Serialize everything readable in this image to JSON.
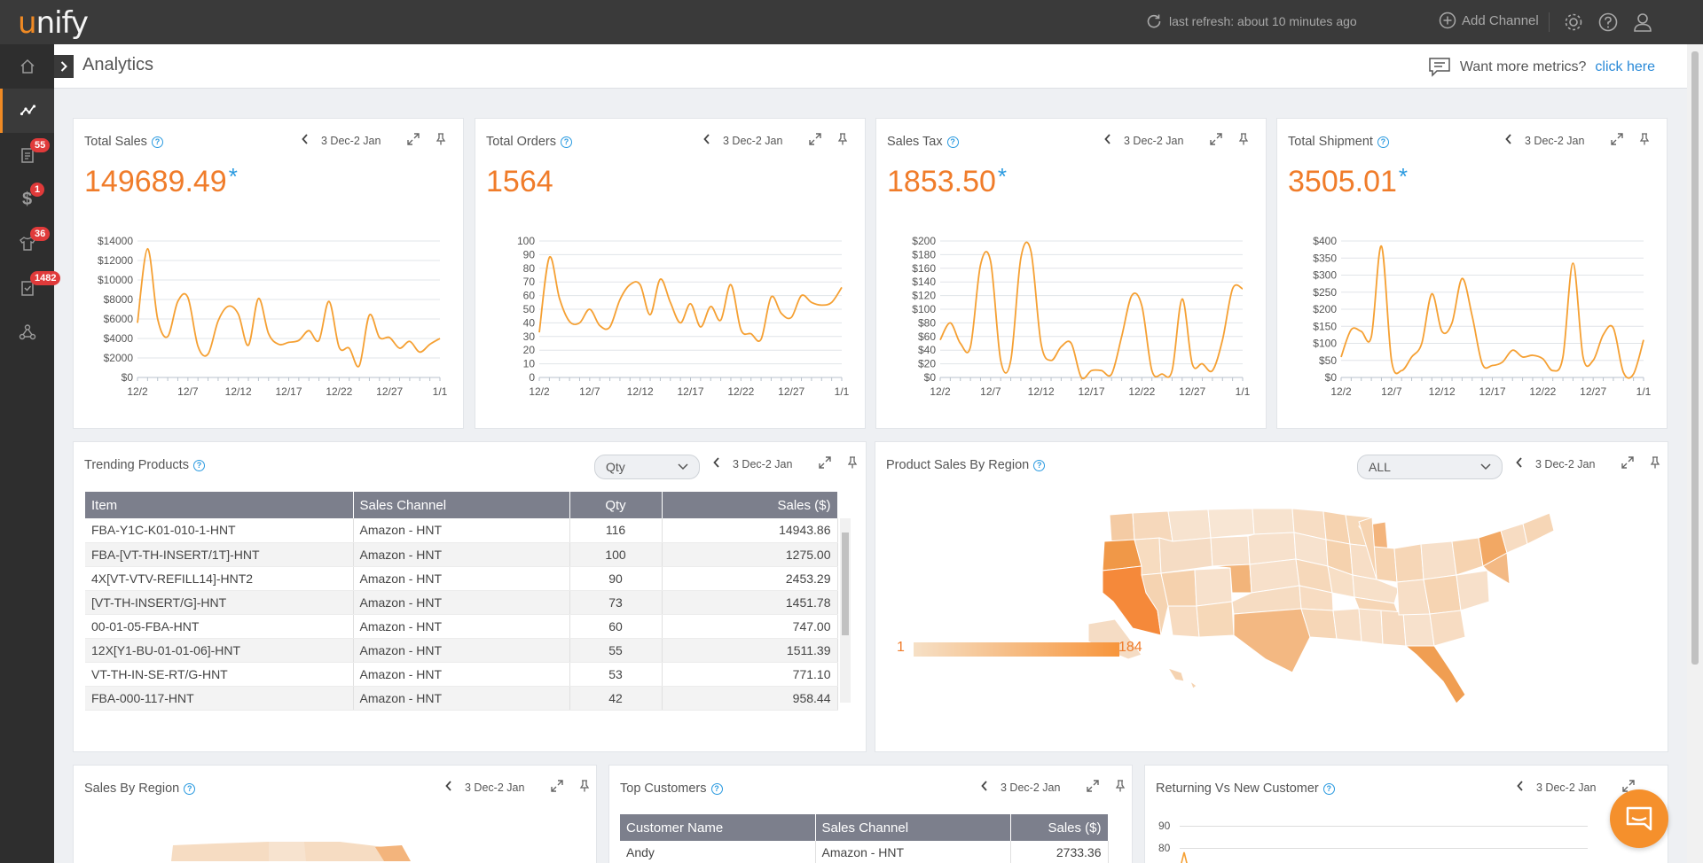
{
  "app": {
    "logo_text_1": "u",
    "logo_text_2": "nify"
  },
  "topbar": {
    "refresh_text": "last refresh: about 10 minutes ago",
    "add_channel": "Add Channel",
    "icons": [
      "refresh-icon",
      "plus-circle-icon",
      "gear-icon",
      "help-icon",
      "user-icon"
    ]
  },
  "sidebar": {
    "items": [
      {
        "name": "home",
        "icon": "home-icon",
        "badge": ""
      },
      {
        "name": "analytics",
        "icon": "analytics-icon",
        "badge": "",
        "active": true
      },
      {
        "name": "orders",
        "icon": "clipboard-icon",
        "badge": "55"
      },
      {
        "name": "sales",
        "icon": "dollar-icon",
        "badge": "1"
      },
      {
        "name": "products",
        "icon": "shirt-icon",
        "badge": "36"
      },
      {
        "name": "tasks",
        "icon": "checklist-icon",
        "badge": "1482"
      },
      {
        "name": "integrations",
        "icon": "network-icon",
        "badge": ""
      }
    ]
  },
  "page": {
    "title": "Analytics",
    "metrics_prompt": "Want more metrics?",
    "metrics_link": "click here"
  },
  "date_range": "3 Dec-2 Jan",
  "kpis": [
    {
      "title": "Total Sales",
      "value": "149689.49",
      "asterisk": "*"
    },
    {
      "title": "Total Orders",
      "value": "1564",
      "asterisk": ""
    },
    {
      "title": "Sales Tax",
      "value": "1853.50",
      "asterisk": "*"
    },
    {
      "title": "Total Shipment",
      "value": "3505.01",
      "asterisk": "*"
    }
  ],
  "chart_data": [
    {
      "type": "line",
      "title": "Total Sales",
      "x_ticks": [
        "12/2",
        "12/7",
        "12/12",
        "12/17",
        "12/22",
        "12/27",
        "1/1"
      ],
      "y_ticks": [
        "$0",
        "$2000",
        "$4000",
        "$6000",
        "$8000",
        "$10000",
        "$12000",
        "$14000"
      ],
      "ylim": [
        0,
        14000
      ],
      "color": "#f5a033",
      "values": [
        5600,
        13200,
        6000,
        4200,
        7800,
        8200,
        3200,
        2400,
        5800,
        7300,
        6500,
        3300,
        8100,
        4500,
        3400,
        3600,
        3800,
        4800,
        3800,
        7800,
        3100,
        3000,
        1200,
        6400,
        4100,
        4100,
        3000,
        3700,
        2600,
        3400,
        4000
      ]
    },
    {
      "type": "line",
      "title": "Total Orders",
      "x_ticks": [
        "12/2",
        "12/7",
        "12/12",
        "12/17",
        "12/22",
        "12/27",
        "1/1"
      ],
      "y_ticks": [
        "0",
        "10",
        "20",
        "30",
        "40",
        "50",
        "60",
        "70",
        "80",
        "90",
        "100"
      ],
      "ylim": [
        0,
        100
      ],
      "color": "#f5a033",
      "values": [
        33,
        88,
        58,
        41,
        40,
        50,
        38,
        37,
        57,
        68,
        68,
        46,
        72,
        55,
        40,
        54,
        37,
        52,
        42,
        68,
        35,
        32,
        28,
        59,
        47,
        44,
        60,
        55,
        53,
        55,
        66
      ]
    },
    {
      "type": "line",
      "title": "Sales Tax",
      "x_ticks": [
        "12/2",
        "12/7",
        "12/12",
        "12/17",
        "12/22",
        "12/27",
        "1/1"
      ],
      "y_ticks": [
        "$0",
        "$20",
        "$40",
        "$60",
        "$80",
        "$100",
        "$120",
        "$140",
        "$160",
        "$180",
        "$200"
      ],
      "ylim": [
        0,
        200
      ],
      "color": "#f5a033",
      "values": [
        55,
        80,
        50,
        45,
        165,
        170,
        25,
        25,
        175,
        185,
        50,
        25,
        45,
        50,
        0,
        10,
        10,
        5,
        60,
        120,
        105,
        10,
        5,
        10,
        115,
        20,
        20,
        10,
        55,
        130,
        130
      ]
    },
    {
      "type": "line",
      "title": "Total Shipment",
      "x_ticks": [
        "12/2",
        "12/7",
        "12/12",
        "12/17",
        "12/22",
        "12/27",
        "1/1"
      ],
      "y_ticks": [
        "$0",
        "$50",
        "$100",
        "$150",
        "$200",
        "$250",
        "$300",
        "$350",
        "$400"
      ],
      "ylim": [
        0,
        400
      ],
      "color": "#f5a033",
      "values": [
        60,
        140,
        135,
        120,
        385,
        50,
        20,
        60,
        100,
        245,
        135,
        160,
        290,
        180,
        40,
        35,
        45,
        80,
        60,
        65,
        55,
        20,
        60,
        335,
        60,
        50,
        125,
        145,
        15,
        10,
        110
      ]
    }
  ],
  "trending": {
    "title": "Trending Products",
    "select_value": "Qty",
    "columns": [
      "Item",
      "Sales Channel",
      "Qty",
      "Sales ($)"
    ],
    "rows": [
      [
        "FBA-Y1C-K01-010-1-HNT",
        "Amazon - HNT",
        "116",
        "14943.86"
      ],
      [
        "FBA-[VT-TH-INSERT/1T]-HNT",
        "Amazon - HNT",
        "100",
        "1275.00"
      ],
      [
        "4X[VT-VTV-REFILL14]-HNT2",
        "Amazon - HNT",
        "90",
        "2453.29"
      ],
      [
        "[VT-TH-INSERT/G]-HNT",
        "Amazon - HNT",
        "73",
        "1451.78"
      ],
      [
        "00-01-05-FBA-HNT",
        "Amazon - HNT",
        "60",
        "747.00"
      ],
      [
        "12X[Y1-BU-01-01-06]-HNT",
        "Amazon - HNT",
        "55",
        "1511.39"
      ],
      [
        "VT-TH-IN-SE-RT/G-HNT",
        "Amazon - HNT",
        "53",
        "771.10"
      ],
      [
        "FBA-000-117-HNT",
        "Amazon - HNT",
        "42",
        "958.44"
      ]
    ]
  },
  "region_map": {
    "title": "Product Sales By Region",
    "select_value": "ALL",
    "legend_min": "1",
    "legend_max": "184"
  },
  "sales_by_region": {
    "title": "Sales By Region"
  },
  "top_customers": {
    "title": "Top Customers",
    "columns": [
      "Customer Name",
      "Sales Channel",
      "Sales ($)"
    ],
    "rows": [
      [
        "Andy",
        "Amazon - HNT",
        "2733.36"
      ]
    ]
  },
  "returning": {
    "title": "Returning Vs New Customer",
    "y_ticks": [
      "90",
      "80"
    ]
  },
  "colors": {
    "accent": "#f07c2a",
    "link": "#2a8ad8",
    "line": "#f5a033",
    "header": "#7c7f8c"
  }
}
